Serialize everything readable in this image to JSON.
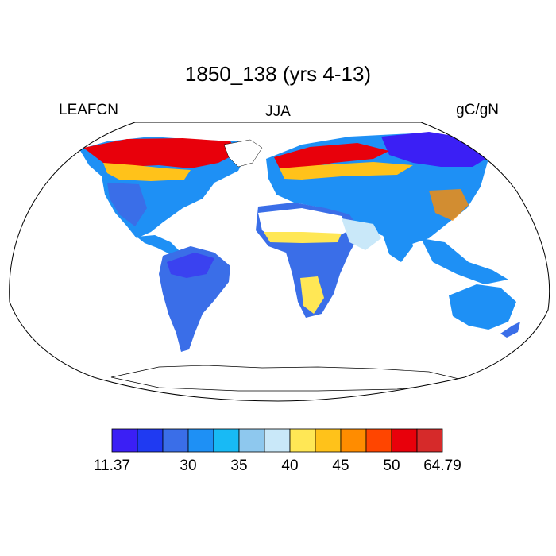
{
  "title": "1850_138 (yrs 4-13)",
  "left_string": "LEAFCN",
  "center_string": "JJA",
  "right_string": "gC/gN",
  "map": {
    "projection": "Robinson",
    "variable": "LEAFCN",
    "season": "JJA",
    "units": "gC/gN",
    "fill_colors": [
      "#3b1ff5",
      "#1f3af2",
      "#3a6ee8",
      "#1e90f5",
      "#18baf5",
      "#8ec8ee",
      "#c9e8f9",
      "#ffe755",
      "#ffc21a",
      "#ff8c00",
      "#ff4500",
      "#e8000b",
      "#d62a2a"
    ]
  },
  "colorbar": {
    "labels": [
      "11.37",
      "30",
      "35",
      "40",
      "45",
      "50",
      "64.79"
    ],
    "label_positions": [
      0,
      3,
      5,
      7,
      9,
      11,
      13
    ],
    "colors": [
      "#3b1ff5",
      "#1f3af2",
      "#3a6ee8",
      "#1e90f5",
      "#18baf5",
      "#8ec8ee",
      "#c9e8f9",
      "#ffe755",
      "#ffc21a",
      "#ff8c00",
      "#ff4500",
      "#e8000b",
      "#d62a2a"
    ]
  }
}
